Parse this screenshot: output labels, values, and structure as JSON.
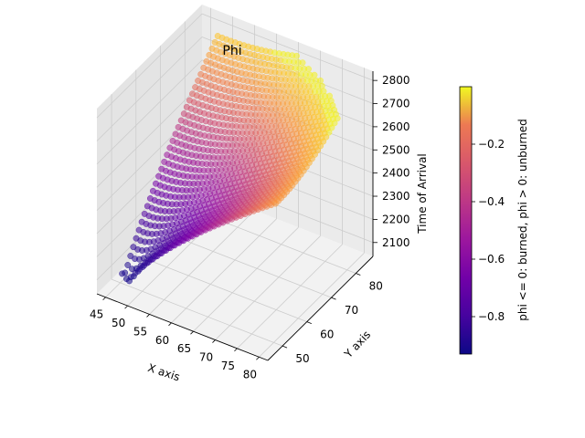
{
  "chart_data": {
    "type": "scatter3d",
    "title": "Phi",
    "xlabel": "X axis",
    "ylabel": "Y axis",
    "zlabel": "Time of Arrival",
    "colorbar_label": "phi <= 0: burned, phi > 0: unburned",
    "colormap": "plasma",
    "x_ticks": [
      "45",
      "50",
      "55",
      "60",
      "65",
      "70",
      "75",
      "80"
    ],
    "y_ticks": [
      "50",
      "60",
      "70",
      "80"
    ],
    "z_ticks": [
      "2100",
      "2200",
      "2300",
      "2400",
      "2500",
      "2600",
      "2700",
      "2800"
    ],
    "colorbar_ticks": [
      "−0.8",
      "−0.6",
      "−0.4",
      "−0.2"
    ],
    "xlim": [
      43,
      82
    ],
    "ylim": [
      44,
      87
    ],
    "zlim": [
      2040,
      2840
    ],
    "clim": [
      -0.93,
      0.0
    ],
    "grid": true,
    "surface": {
      "description": "cone-shaped time-of-arrival surface with apex near (48, 48)",
      "apex": [
        48,
        48
      ],
      "t_min": 2070,
      "t_max": 2790,
      "phi_min": -0.92,
      "phi_max": -0.02
    }
  }
}
